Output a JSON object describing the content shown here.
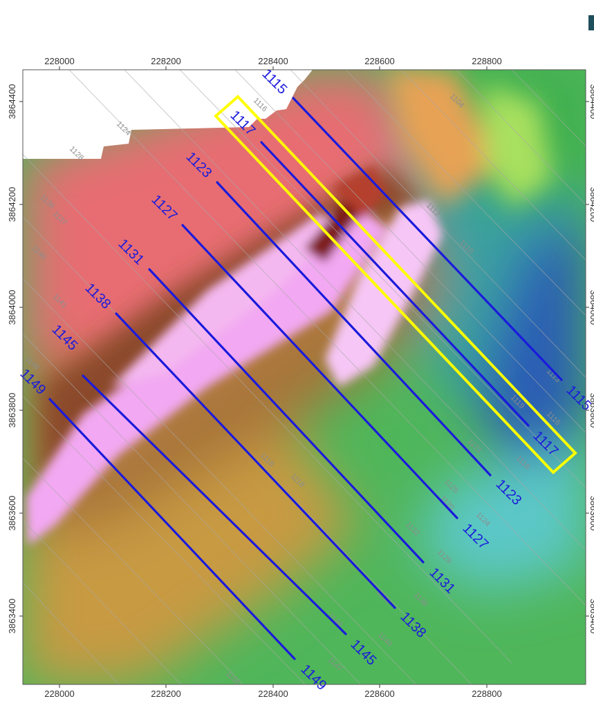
{
  "x_ticks_top": [
    "228000",
    "228200",
    "228400",
    "228600",
    "228800"
  ],
  "x_ticks_bottom": [
    "228000",
    "228200",
    "228400",
    "228600",
    "228800"
  ],
  "y_ticks_left": [
    "3864400",
    "3864200",
    "3864000",
    "3863800",
    "3863600",
    "3863400"
  ],
  "y_ticks_right": [
    "3864400",
    "3864200",
    "3864000",
    "3863800",
    "3863600",
    "3863400"
  ],
  "survey_lines": [
    {
      "id": "1115",
      "start_label": "1115",
      "end_label": "1115"
    },
    {
      "id": "1117",
      "start_label": "1117",
      "end_label": "1117"
    },
    {
      "id": "1123",
      "start_label": "1123",
      "end_label": "1123"
    },
    {
      "id": "1127",
      "start_label": "1127",
      "end_label": "1127"
    },
    {
      "id": "1131",
      "start_label": "1131",
      "end_label": "1131"
    },
    {
      "id": "1138",
      "start_label": "1138",
      "end_label": "1138"
    },
    {
      "id": "1145",
      "start_label": "1145",
      "end_label": "1145"
    },
    {
      "id": "1149",
      "start_label": "1149",
      "end_label": "1149"
    }
  ],
  "highlight": {
    "line": "1117",
    "color": "#ffff00"
  },
  "background_line_labels": [
    "1104",
    "1116",
    "1124",
    "1128",
    "1136",
    "1137",
    "1140",
    "1141",
    "1148",
    "1112",
    "1110",
    "1113",
    "1119",
    "1116",
    "1121",
    "1118",
    "1125",
    "1120",
    "1124",
    "1132",
    "1129",
    "1136",
    "1136",
    "1148",
    "1140",
    "1147",
    "1155",
    "1118",
    "1118"
  ],
  "colors": {
    "survey_line": "#1a1adc",
    "background_lines": "#a8a8a8",
    "highlight": "#ffff00"
  }
}
